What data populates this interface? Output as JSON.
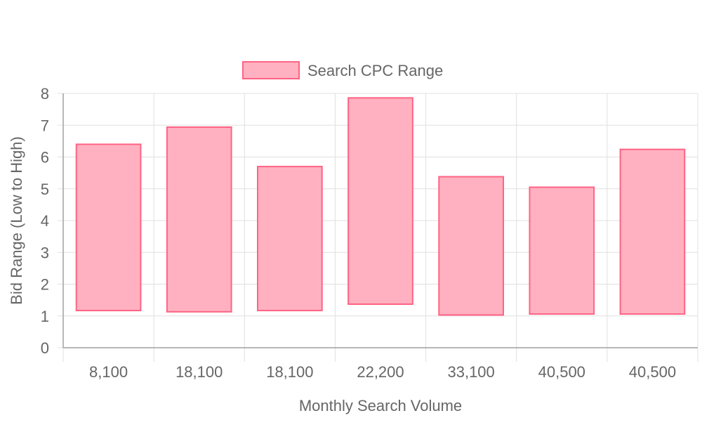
{
  "chart_data": {
    "type": "bar",
    "subtype": "floating-range",
    "legend_position": "top",
    "grid": true,
    "xlabel": "Monthly Search Volume",
    "ylabel": "Bid Range (Low to High)",
    "ylim": [
      0,
      8
    ],
    "yticks": [
      0,
      1,
      2,
      3,
      4,
      5,
      6,
      7,
      8
    ],
    "categories": [
      "8,100",
      "18,100",
      "18,100",
      "22,200",
      "33,100",
      "40,500",
      "40,500"
    ],
    "series": [
      {
        "name": "Search CPC Range",
        "fill": "#ffb1c1",
        "stroke": "#ff6384",
        "values": [
          [
            1.17,
            6.4
          ],
          [
            1.13,
            6.94
          ],
          [
            1.17,
            5.7
          ],
          [
            1.37,
            7.86
          ],
          [
            1.03,
            5.38
          ],
          [
            1.06,
            5.05
          ],
          [
            1.06,
            6.24
          ]
        ]
      }
    ]
  }
}
